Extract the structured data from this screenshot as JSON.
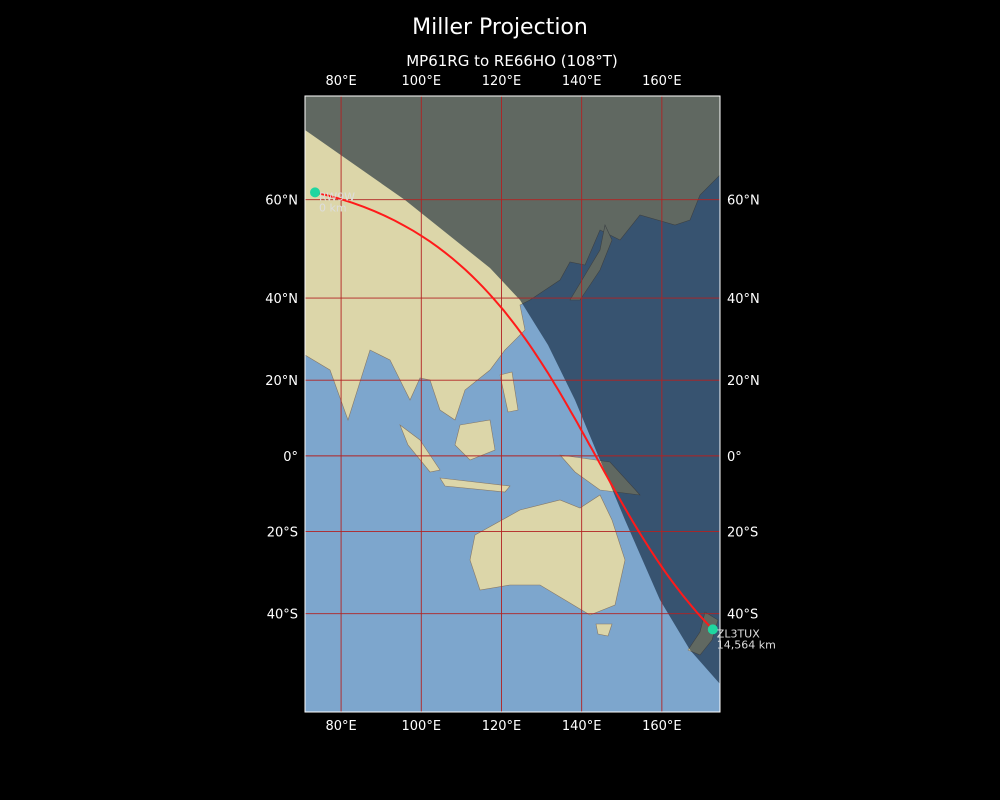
{
  "title": "Miller Projection",
  "subtitle": "MP61RG to RE66HO (108°T)",
  "map": {
    "projection": "Miller",
    "lon_range": [
      71,
      174.5
    ],
    "lat_range": [
      -60,
      76
    ],
    "lon_ticks": [
      {
        "value": 80,
        "label": "80°E"
      },
      {
        "value": 100,
        "label": "100°E"
      },
      {
        "value": 120,
        "label": "120°E"
      },
      {
        "value": 140,
        "label": "140°E"
      },
      {
        "value": 160,
        "label": "160°E"
      }
    ],
    "lat_ticks": [
      {
        "value": 60,
        "label": "60°N"
      },
      {
        "value": 40,
        "label": "40°N"
      },
      {
        "value": 20,
        "label": "20°N"
      },
      {
        "value": 0,
        "label": "0°"
      },
      {
        "value": -20,
        "label": "20°S"
      },
      {
        "value": -40,
        "label": "40°S"
      }
    ],
    "gridline_color": "#b22222",
    "ocean_color": "#6f9cc8",
    "land_color": "#d9d2a0",
    "night_shade_color": "#15273a",
    "path_color": "#ff1a1a",
    "marker_color": "#1fd6a0"
  },
  "stations": [
    {
      "name": "RW9W",
      "distance": "0 km",
      "lon": 73.5,
      "lat": 61.3
    },
    {
      "name": "ZL3TUX",
      "distance": "14,564 km",
      "lon": 172.7,
      "lat": -43.5
    }
  ]
}
